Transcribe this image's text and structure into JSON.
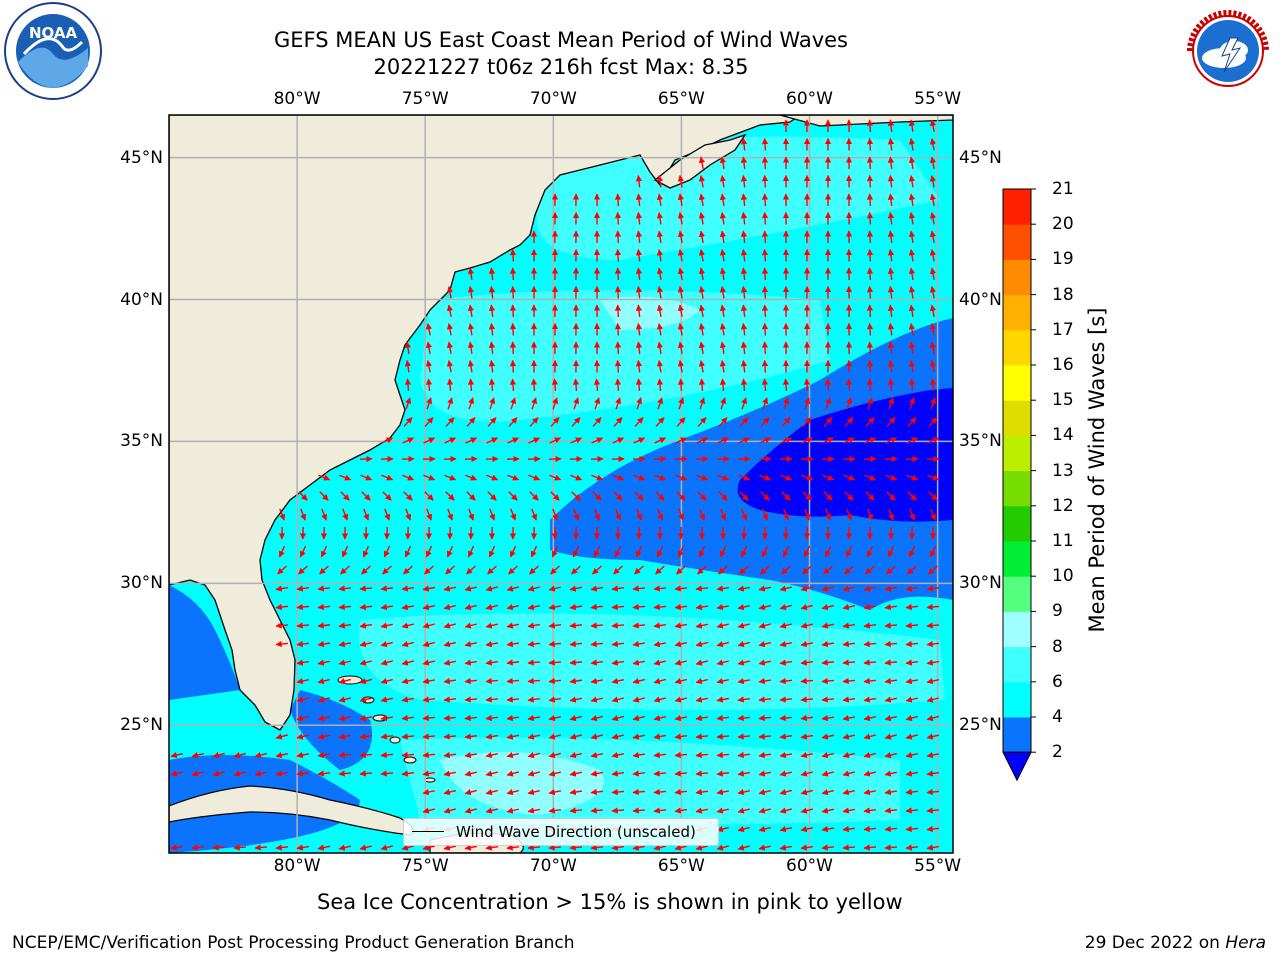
{
  "header": {
    "title_line1": "GEFS MEAN US East Coast Mean Period of Wind Waves",
    "title_line2": "20221227 t06z 216h fcst   Max: 8.35"
  },
  "logos": {
    "left": {
      "icon": "noaa-logo",
      "text": "NOAA",
      "ring_text": "NATIONAL OCEANIC AND ATMOSPHERIC ADMINISTRATION · U.S. DEPARTMENT OF COMMERCE"
    },
    "right": {
      "icon": "nws-logo",
      "ring_text": "NATIONAL WEATHER SERVICE"
    }
  },
  "map": {
    "projection": "equirectangular",
    "lon_range": [
      -85,
      -54.4
    ],
    "lat_range": [
      20.5,
      46.5
    ],
    "gridlines": true,
    "colors": {
      "land": "#efecdc",
      "coast": "#000000",
      "grid": "#b0b0b0",
      "arrow": "#ff0000"
    },
    "lon_ticks": [
      {
        "value": -80,
        "label": "80°W"
      },
      {
        "value": -75,
        "label": "75°W"
      },
      {
        "value": -70,
        "label": "70°W"
      },
      {
        "value": -65,
        "label": "65°W"
      },
      {
        "value": -60,
        "label": "60°W"
      },
      {
        "value": -55,
        "label": "55°W"
      }
    ],
    "lat_ticks": [
      {
        "value": 45,
        "label": "45°N"
      },
      {
        "value": 40,
        "label": "40°N"
      },
      {
        "value": 35,
        "label": "35°N"
      },
      {
        "value": 30,
        "label": "30°N"
      },
      {
        "value": 25,
        "label": "25°N"
      }
    ],
    "field": {
      "variable": "Mean Period of Wind Waves",
      "units": "s",
      "max": 8.35,
      "predominant_classes": [
        "2-4 s offshore zone near 35°N 60°W",
        "4-6 s over most of the ocean",
        "6-8 s patches"
      ]
    },
    "arrows": {
      "description": "Wind wave direction (unscaled)",
      "north_of_lat": 37,
      "south_of_lat": 30,
      "north_direction": "toward NNE",
      "transition_direction": "toward SW",
      "south_direction": "toward W"
    }
  },
  "colorbar": {
    "label": "Mean Period of Wind Waves [s]",
    "levels": [
      2,
      4,
      6,
      8,
      9,
      10,
      11,
      12,
      13,
      14,
      15,
      16,
      17,
      18,
      19,
      20,
      21
    ],
    "colors": [
      "#0a74ff",
      "#00ffff",
      "#40ffff",
      "#a0ffff",
      "#55ff80",
      "#00ee33",
      "#22cc00",
      "#77dd00",
      "#bbee00",
      "#dddd00",
      "#ffff00",
      "#ffd700",
      "#ffb000",
      "#ff8c00",
      "#ff5000",
      "#ff2000"
    ],
    "under_color": "#0000ff",
    "extend": "min"
  },
  "legend": {
    "text": "Wind Wave Direction (unscaled)"
  },
  "footer": {
    "sea_ice_note": "Sea Ice Concentration > 15% is shown in pink to yellow",
    "left": "NCEP/EMC/Verification Post Processing Product Generation Branch",
    "right_date": "29 Dec 2022 on ",
    "right_host": "Hera"
  }
}
